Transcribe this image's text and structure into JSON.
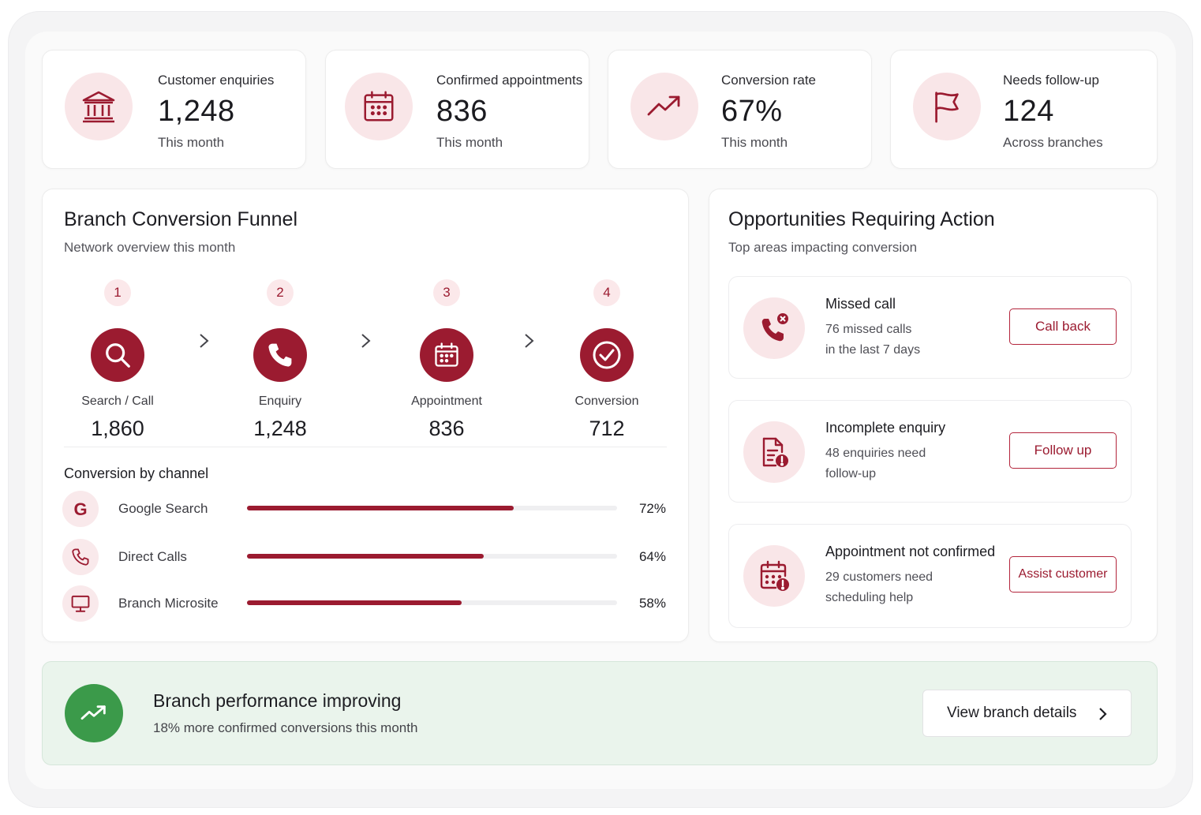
{
  "kpis": [
    {
      "label": "Customer enquiries",
      "value": "1,248",
      "sub": "This month",
      "icon": "bank-icon"
    },
    {
      "label": "Confirmed appointments",
      "value": "836",
      "sub": "This month",
      "icon": "calendar-icon"
    },
    {
      "label": "Conversion rate",
      "value": "67%",
      "sub": "This month",
      "icon": "trending-up-icon"
    },
    {
      "label": "Needs follow-up",
      "value": "124",
      "sub": "Across branches",
      "icon": "flag-icon"
    }
  ],
  "funnel": {
    "title": "Branch Conversion Funnel",
    "subtitle": "Network overview this month",
    "steps": [
      {
        "num": "1",
        "label": "Search / Call",
        "value": "1,860",
        "icon": "search-icon"
      },
      {
        "num": "2",
        "label": "Enquiry",
        "value": "1,248",
        "icon": "phone-icon"
      },
      {
        "num": "3",
        "label": "Appointment",
        "value": "836",
        "icon": "calendar-icon"
      },
      {
        "num": "4",
        "label": "Conversion",
        "value": "712",
        "icon": "check-circle-icon"
      }
    ]
  },
  "channels": {
    "title": "Conversion by channel",
    "items": [
      {
        "label": "Google Search",
        "pct_text": "72%",
        "pct": 0.72,
        "icon": "google-icon"
      },
      {
        "label": "Direct Calls",
        "pct_text": "64%",
        "pct": 0.64,
        "icon": "phone-icon"
      },
      {
        "label": "Branch Microsite",
        "pct_text": "58%",
        "pct": 0.58,
        "icon": "monitor-icon"
      }
    ]
  },
  "opportunities": {
    "title": "Opportunities Requiring Action",
    "subtitle": "Top areas impacting conversion",
    "items": [
      {
        "title": "Missed call",
        "line1": "76 missed calls",
        "line2": "in the last 7 days",
        "button": "Call back",
        "icon": "missed-call-icon"
      },
      {
        "title": "Incomplete enquiry",
        "line1": "48 enquiries need",
        "line2": "follow-up",
        "button": "Follow up",
        "icon": "document-alert-icon"
      },
      {
        "title": "Appointment not confirmed",
        "line1": "29 customers need",
        "line2": "scheduling help",
        "button": "Assist customer",
        "icon": "calendar-alert-icon"
      }
    ]
  },
  "banner": {
    "title": "Branch performance improving",
    "subtitle": "18% more confirmed conversions this month",
    "button": "View branch details",
    "icon": "trending-up-icon"
  },
  "colors": {
    "accent": "#9b1b30",
    "accent_light": "#f9e6e8",
    "success": "#3b9a4a",
    "success_bg": "#eaf4ec"
  }
}
